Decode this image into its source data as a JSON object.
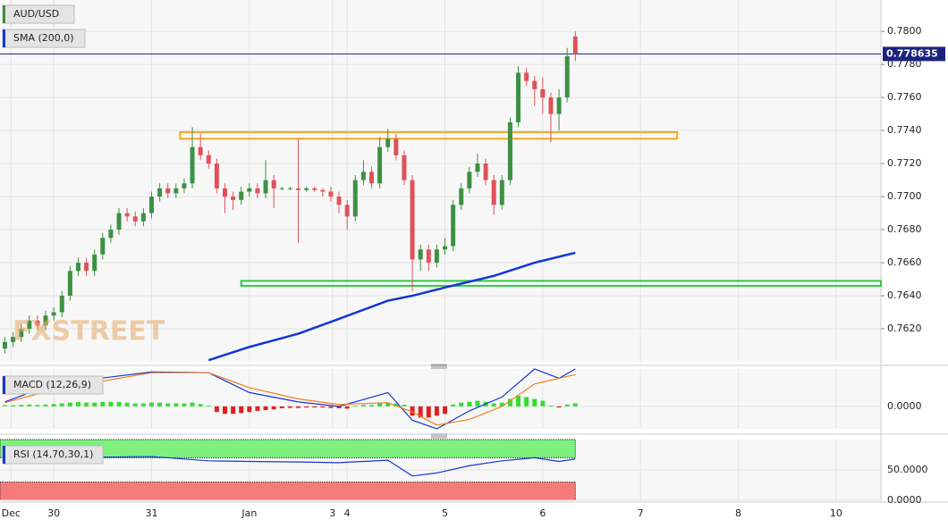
{
  "chart_data": {
    "type": "candlestick",
    "legend": "AUD/USD",
    "watermark": "FXSTREET",
    "up_color": "#3d9142",
    "down_color": "#e0525b",
    "x": [
      12,
      14,
      16,
      18,
      20,
      22,
      24,
      26,
      28,
      30,
      32,
      34,
      36,
      38,
      40,
      42,
      44,
      46,
      48,
      50,
      52,
      54,
      56,
      58,
      60,
      62,
      64,
      66,
      68,
      70,
      72,
      74,
      76,
      78,
      80,
      82,
      84,
      86,
      88,
      90,
      92,
      94,
      96,
      98,
      100,
      102,
      104,
      106,
      108,
      110,
      112,
      114,
      116,
      118,
      120,
      122,
      124,
      126,
      128,
      130,
      132,
      134,
      136,
      138,
      140,
      142,
      144,
      146,
      148,
      150,
      152
    ],
    "open": [
      0.7608,
      0.7612,
      0.7615,
      0.762,
      0.7625,
      0.7622,
      0.7628,
      0.763,
      0.764,
      0.7655,
      0.766,
      0.7655,
      0.7665,
      0.7675,
      0.768,
      0.769,
      0.7688,
      0.7685,
      0.769,
      0.77,
      0.7705,
      0.7702,
      0.7705,
      0.7708,
      0.773,
      0.7725,
      0.772,
      0.7705,
      0.77,
      0.7698,
      0.7703,
      0.7705,
      0.7702,
      0.771,
      0.7705,
      0.7705,
      0.7705,
      0.7704,
      0.7705,
      0.7704,
      0.7703,
      0.77,
      0.7695,
      0.7688,
      0.771,
      0.7715,
      0.7708,
      0.773,
      0.7735,
      0.7725,
      0.771,
      0.7662,
      0.7668,
      0.766,
      0.7668,
      0.767,
      0.7695,
      0.7705,
      0.7715,
      0.772,
      0.771,
      0.7695,
      0.771,
      0.7745,
      0.7775,
      0.777,
      0.7765,
      0.776,
      0.775,
      0.776,
      0.7797
    ],
    "high": [
      0.7615,
      0.7618,
      0.7623,
      0.7628,
      0.7628,
      0.7631,
      0.7633,
      0.7643,
      0.7658,
      0.7663,
      0.7663,
      0.7668,
      0.7678,
      0.7683,
      0.7693,
      0.7693,
      0.7691,
      0.7693,
      0.7703,
      0.7708,
      0.7708,
      0.7708,
      0.7711,
      0.7742,
      0.7738,
      0.7728,
      0.7723,
      0.7708,
      0.7703,
      0.7706,
      0.7708,
      0.7708,
      0.7722,
      0.7713,
      0.7706,
      0.7706,
      0.7735,
      0.7706,
      0.7706,
      0.7705,
      0.7706,
      0.7703,
      0.7698,
      0.7713,
      0.7722,
      0.7718,
      0.7736,
      0.7741,
      0.7738,
      0.7728,
      0.7713,
      0.7671,
      0.7671,
      0.7671,
      0.7675,
      0.7698,
      0.7708,
      0.7718,
      0.7726,
      0.7723,
      0.7713,
      0.7713,
      0.7748,
      0.7779,
      0.7778,
      0.7773,
      0.7772,
      0.7763,
      0.7765,
      0.779,
      0.78
    ],
    "low": [
      0.7605,
      0.7609,
      0.7612,
      0.7617,
      0.7619,
      0.7619,
      0.7625,
      0.7627,
      0.7637,
      0.7652,
      0.7652,
      0.7652,
      0.7662,
      0.7672,
      0.7677,
      0.7685,
      0.7682,
      0.7682,
      0.7687,
      0.7697,
      0.7699,
      0.7699,
      0.7702,
      0.7705,
      0.7722,
      0.7717,
      0.7702,
      0.769,
      0.7692,
      0.7695,
      0.77,
      0.7699,
      0.7699,
      0.7693,
      0.7704,
      0.7704,
      0.7672,
      0.7703,
      0.7703,
      0.77,
      0.7697,
      0.769,
      0.768,
      0.7685,
      0.7707,
      0.7705,
      0.7705,
      0.7727,
      0.7722,
      0.7707,
      0.7643,
      0.7655,
      0.7655,
      0.7657,
      0.7665,
      0.7667,
      0.7692,
      0.7702,
      0.7712,
      0.7707,
      0.7689,
      0.7692,
      0.7707,
      0.7742,
      0.7767,
      0.7755,
      0.775,
      0.7733,
      0.774,
      0.7757,
      0.7782
    ],
    "close": [
      0.7612,
      0.7615,
      0.762,
      0.7625,
      0.7622,
      0.7628,
      0.763,
      0.764,
      0.7655,
      0.766,
      0.7655,
      0.7665,
      0.7675,
      0.768,
      0.769,
      0.7688,
      0.7685,
      0.769,
      0.77,
      0.7705,
      0.7702,
      0.7705,
      0.7708,
      0.773,
      0.7725,
      0.772,
      0.7705,
      0.77,
      0.7698,
      0.7703,
      0.7705,
      0.7702,
      0.771,
      0.7705,
      0.7705,
      0.7705,
      0.7704,
      0.7705,
      0.7704,
      0.7703,
      0.77,
      0.7695,
      0.7688,
      0.771,
      0.7715,
      0.7708,
      0.773,
      0.7735,
      0.7725,
      0.771,
      0.7662,
      0.7668,
      0.766,
      0.7668,
      0.767,
      0.7695,
      0.7705,
      0.7715,
      0.772,
      0.771,
      0.7695,
      0.771,
      0.7745,
      0.7775,
      0.777,
      0.7765,
      0.776,
      0.775,
      0.776,
      0.7785,
      0.77863
    ],
    "xlim": [
      10.8,
      227
    ],
    "xticks": [
      {
        "value": 13.5,
        "label": "Dec"
      },
      {
        "value": 24,
        "label": "30"
      },
      {
        "value": 48,
        "label": "31"
      },
      {
        "value": 72,
        "label": "Jan"
      },
      {
        "value": 92.4,
        "label": "3"
      },
      {
        "value": 96,
        "label": "4"
      },
      {
        "value": 120,
        "label": "5"
      },
      {
        "value": 144,
        "label": "6"
      },
      {
        "value": 168,
        "label": "7"
      },
      {
        "value": 192,
        "label": "8"
      },
      {
        "value": 216,
        "label": "10"
      }
    ],
    "ylim": [
      0.76,
      0.7819
    ],
    "yticks": [
      {
        "value": 0.762,
        "label": "0.7620"
      },
      {
        "value": 0.764,
        "label": "0.7640"
      },
      {
        "value": 0.766,
        "label": "0.7660"
      },
      {
        "value": 0.768,
        "label": "0.7680"
      },
      {
        "value": 0.77,
        "label": "0.7700"
      },
      {
        "value": 0.772,
        "label": "0.7720"
      },
      {
        "value": 0.774,
        "label": "0.7740"
      },
      {
        "value": 0.776,
        "label": "0.7760"
      },
      {
        "value": 0.778,
        "label": "0.7780"
      },
      {
        "value": 0.78,
        "label": "0.7800"
      }
    ],
    "grid": true,
    "last_price": 0.778635,
    "last_price_color": "#1a237e",
    "sma": {
      "name": "SMA (200,0)",
      "color": "#1436d6",
      "x": [
        62,
        72,
        84,
        94,
        106,
        112,
        120,
        132,
        142,
        152
      ],
      "values": [
        0.7601,
        0.7609,
        0.7617,
        0.7626,
        0.7637,
        0.764,
        0.7645,
        0.7652,
        0.766,
        0.7666
      ]
    },
    "zones": [
      {
        "low": 0.7735,
        "high": 0.7739,
        "x": [
          55,
          177
        ],
        "color": "#f5a623"
      },
      {
        "low": 0.7646,
        "high": 0.7649,
        "x": [
          70,
          227
        ],
        "color": "#2ecc40"
      }
    ],
    "macd": {
      "name": "MACD (12,26,9)",
      "ylim": [
        -0.0006,
        0.001
      ],
      "yticks": [
        {
          "value": 0,
          "label": "0.0000"
        }
      ],
      "x": [
        12,
        24,
        48,
        62,
        72,
        84,
        94,
        106,
        112,
        118,
        126,
        134,
        142,
        148,
        152
      ],
      "macd_color": "#1436d6",
      "macd": [
        0.00012,
        0.0006,
        0.00092,
        0.0009,
        0.00037,
        0.00012,
        0,
        0.00037,
        -0.00037,
        -0.0006,
        -0.00012,
        0.00025,
        0.001,
        0.00075,
        0.001
      ],
      "signal_color": "#f07f1c",
      "signal": [
        0.0001,
        0.00045,
        0.0009,
        0.0009,
        0.0005,
        0.0002,
        5e-05,
        0.0001,
        -0.00015,
        -0.0005,
        -0.00035,
        0,
        0.0006,
        0.00075,
        0.00085
      ],
      "hist_up": "#33dd33",
      "hist_down": "#e02020",
      "hist": [
        3e-05,
        3e-05,
        4e-05,
        5e-05,
        4e-05,
        5e-05,
        6e-05,
        8e-05,
        0.0001,
        0.00012,
        0.0001,
        0.0001,
        0.00012,
        0.00012,
        0.00012,
        0.0001,
        8e-05,
        8e-05,
        0.0001,
        0.0001,
        8e-05,
        8e-05,
        8e-05,
        0.0001,
        6e-05,
        2e-05,
        -0.00015,
        -0.0002,
        -0.0002,
        -0.00018,
        -0.00015,
        -0.00012,
        -0.0001,
        -8e-05,
        -5e-05,
        -4e-05,
        -4e-05,
        -3e-05,
        -3e-05,
        -3e-05,
        -4e-05,
        -5e-05,
        -6e-05,
        2e-05,
        4e-05,
        4e-05,
        8e-05,
        0.0001,
        8e-05,
        4e-05,
        -0.00025,
        -0.0003,
        -0.0003,
        -0.00025,
        -0.0002,
        5e-05,
        0.0001,
        0.00012,
        0.00015,
        0.00012,
        8e-05,
        0.0001,
        0.0002,
        0.00028,
        0.00025,
        0.0002,
        0.00015,
        2e-05,
        -3e-05,
        5e-05,
        8e-05
      ]
    },
    "rsi": {
      "name": "RSI (14,70,30,1)",
      "ylim": [
        0,
        100
      ],
      "yticks": [
        {
          "value": 50,
          "label": "50.0000"
        },
        {
          "value": 0,
          "label": "0.0000"
        }
      ],
      "upper": 70,
      "lower": 30,
      "upper_color": "#7ef07e",
      "lower_color": "#f57b7b",
      "band_end": 152,
      "color": "#1436d6",
      "x": [
        12,
        24,
        48,
        62,
        72,
        84,
        94,
        106,
        112,
        118,
        126,
        134,
        142,
        148,
        152
      ],
      "values": [
        60,
        70,
        72,
        65,
        64,
        63,
        62,
        66,
        40,
        45,
        57,
        65,
        70,
        64,
        68
      ]
    }
  }
}
